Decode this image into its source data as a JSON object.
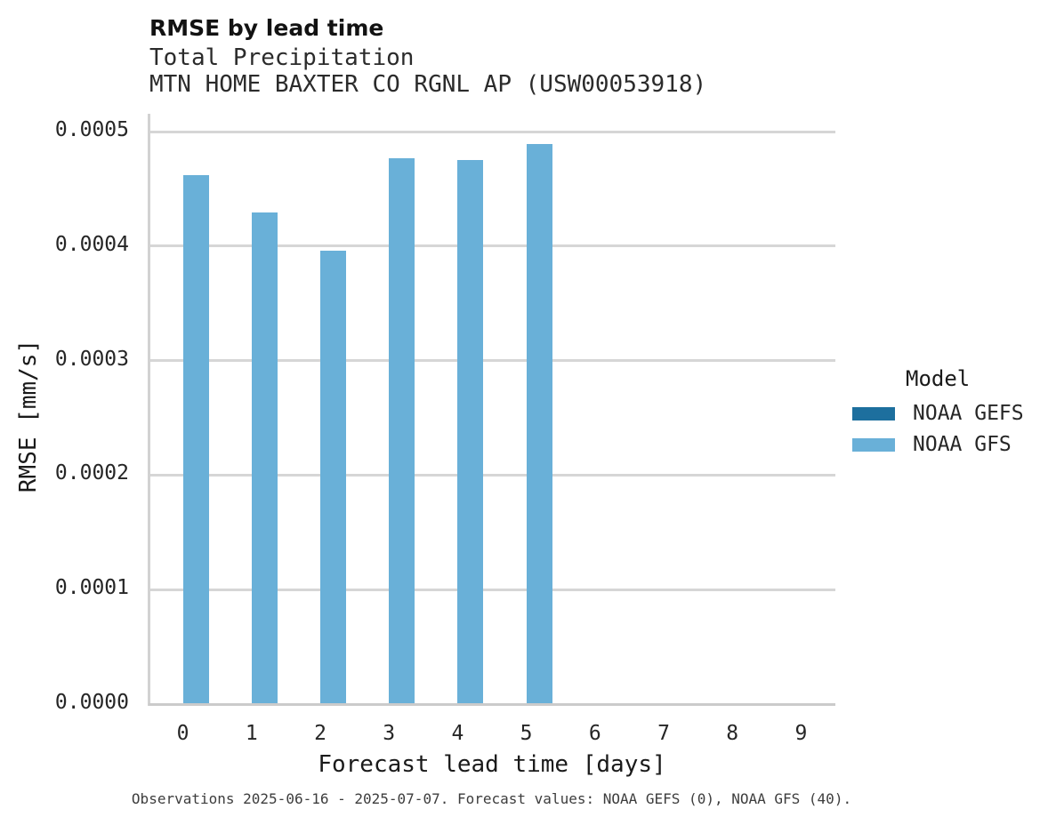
{
  "header": {
    "title": "RMSE by lead time",
    "subtitle1": "Total Precipitation",
    "subtitle2": "MTN HOME BAXTER CO RGNL AP (USW00053918)"
  },
  "footnote": "Observations 2025-06-16 - 2025-07-07. Forecast values: NOAA GEFS (0), NOAA GFS (40).",
  "legend": {
    "title": "Model",
    "entries": [
      {
        "label": "NOAA GEFS",
        "color": "#1d6f9e"
      },
      {
        "label": "NOAA GFS",
        "color": "#69b0d8"
      }
    ]
  },
  "chart_data": {
    "type": "bar",
    "title": "RMSE by lead time",
    "subtitle": "Total Precipitation — MTN HOME BAXTER CO RGNL AP (USW00053918)",
    "xlabel": "Forecast lead time [days]",
    "ylabel": "RMSE [mm/s]",
    "categories": [
      "0",
      "1",
      "2",
      "3",
      "4",
      "5",
      "6",
      "7",
      "8",
      "9"
    ],
    "series": [
      {
        "name": "NOAA GEFS",
        "color": "#1d6f9e",
        "values": [
          0,
          0,
          0,
          0,
          0,
          0,
          0,
          0,
          0,
          0
        ]
      },
      {
        "name": "NOAA GFS",
        "color": "#69b0d8",
        "values": [
          0.000462,
          0.000429,
          0.000396,
          0.000477,
          0.000475,
          0.000489,
          0,
          0,
          0,
          0
        ]
      }
    ],
    "ylim": [
      0,
      0.000516
    ],
    "yticks": [
      0.0,
      0.0001,
      0.0002,
      0.0003,
      0.0004,
      0.0005
    ],
    "ytick_labels": [
      "0.0000",
      "0.0001",
      "0.0002",
      "0.0003",
      "0.0004",
      "0.0005"
    ],
    "grid": true,
    "legend_position": "right",
    "legend_title": "Model"
  }
}
